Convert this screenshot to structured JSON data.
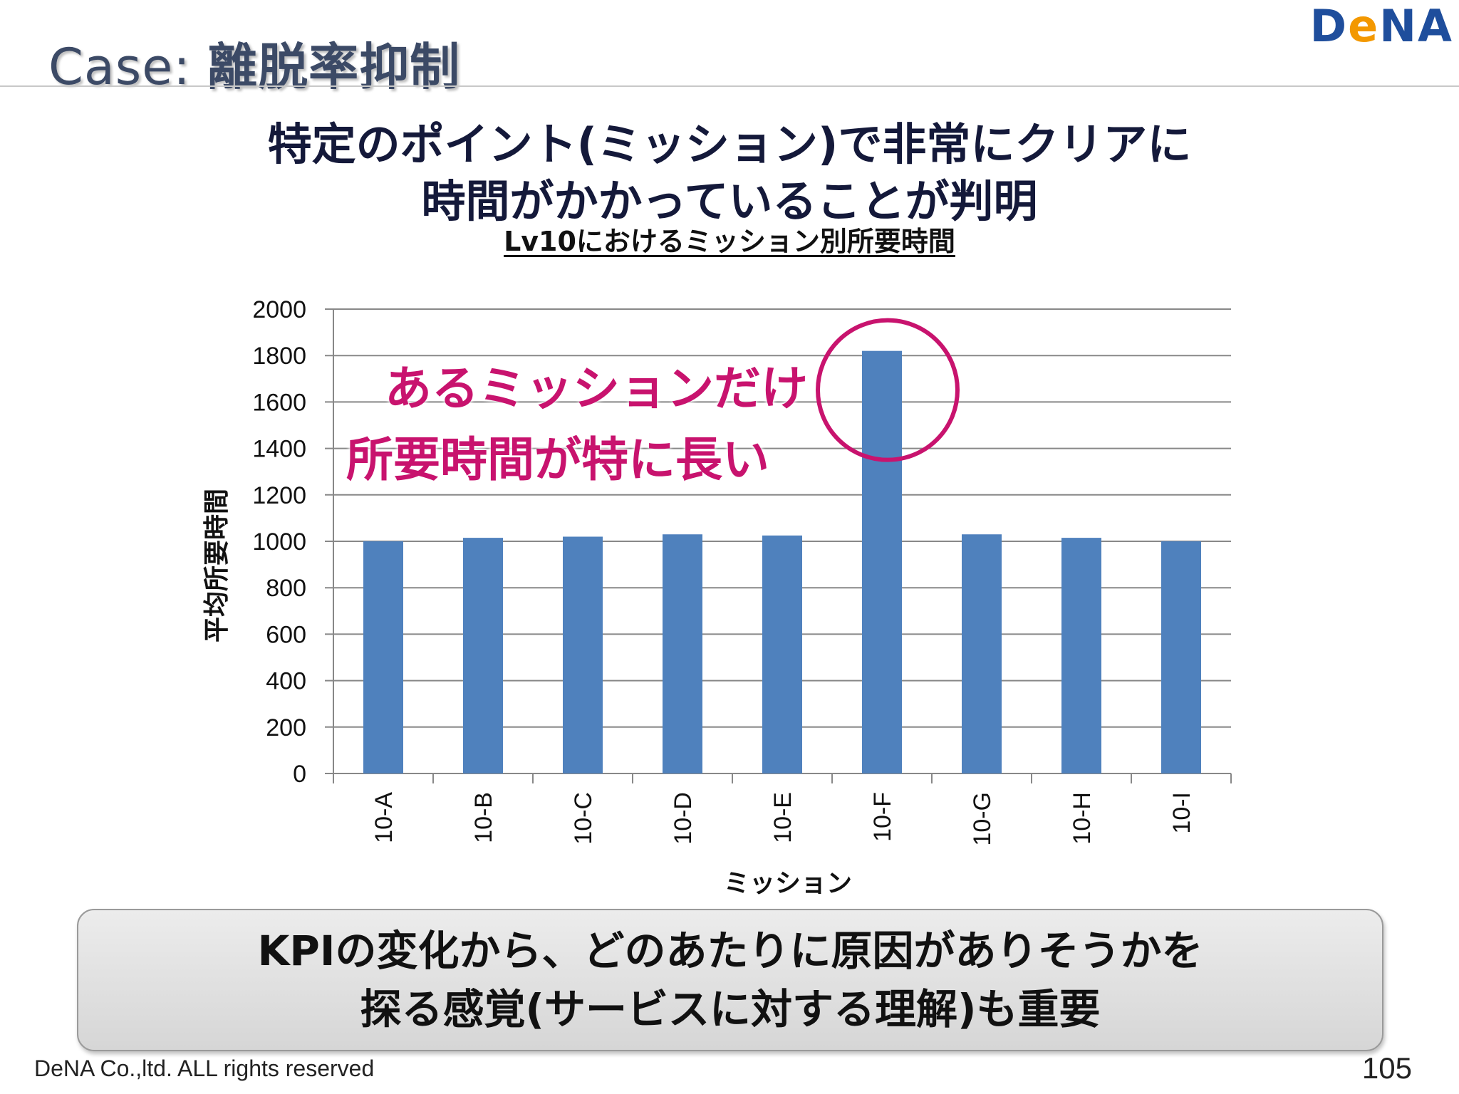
{
  "slide": {
    "title_prefix": "Case: ",
    "title_main": "離脱率抑制",
    "logo_pre": "D",
    "logo_e": "e",
    "logo_post": "NA",
    "headline_line1": "特定のポイント(ミッション)で非常にクリアに",
    "headline_line2": "時間がかかっていることが判明",
    "callout_line1": "あるミッションだけ",
    "callout_line2": "所要時間が特に長い",
    "summary_line1": "KPIの変化から、どのあたりに原因がありそうかを",
    "summary_line2": "探る感覚(サービスに対する理解)も重要",
    "footer": "DeNA Co.,ltd. ALL rights reserved",
    "page_number": "105"
  },
  "colors": {
    "bar": "#4f81bd",
    "grid": "#888888",
    "callout": "#c8136e",
    "title": "#3c4a66",
    "logo_blue": "#1f4e9c",
    "logo_orange": "#f39800"
  },
  "chart_data": {
    "type": "bar",
    "title": "Lv10におけるミッション別所要時間",
    "xlabel": "ミッション",
    "ylabel": "平均所要時間",
    "categories": [
      "10-A",
      "10-B",
      "10-C",
      "10-D",
      "10-E",
      "10-F",
      "10-G",
      "10-H",
      "10-I"
    ],
    "values": [
      1000,
      1015,
      1020,
      1030,
      1025,
      1820,
      1030,
      1015,
      1000
    ],
    "ylim": [
      0,
      2000
    ],
    "yticks": [
      0,
      200,
      400,
      600,
      800,
      1000,
      1200,
      1400,
      1600,
      1800,
      2000
    ],
    "grid": true,
    "highlight_category": "10-F"
  }
}
